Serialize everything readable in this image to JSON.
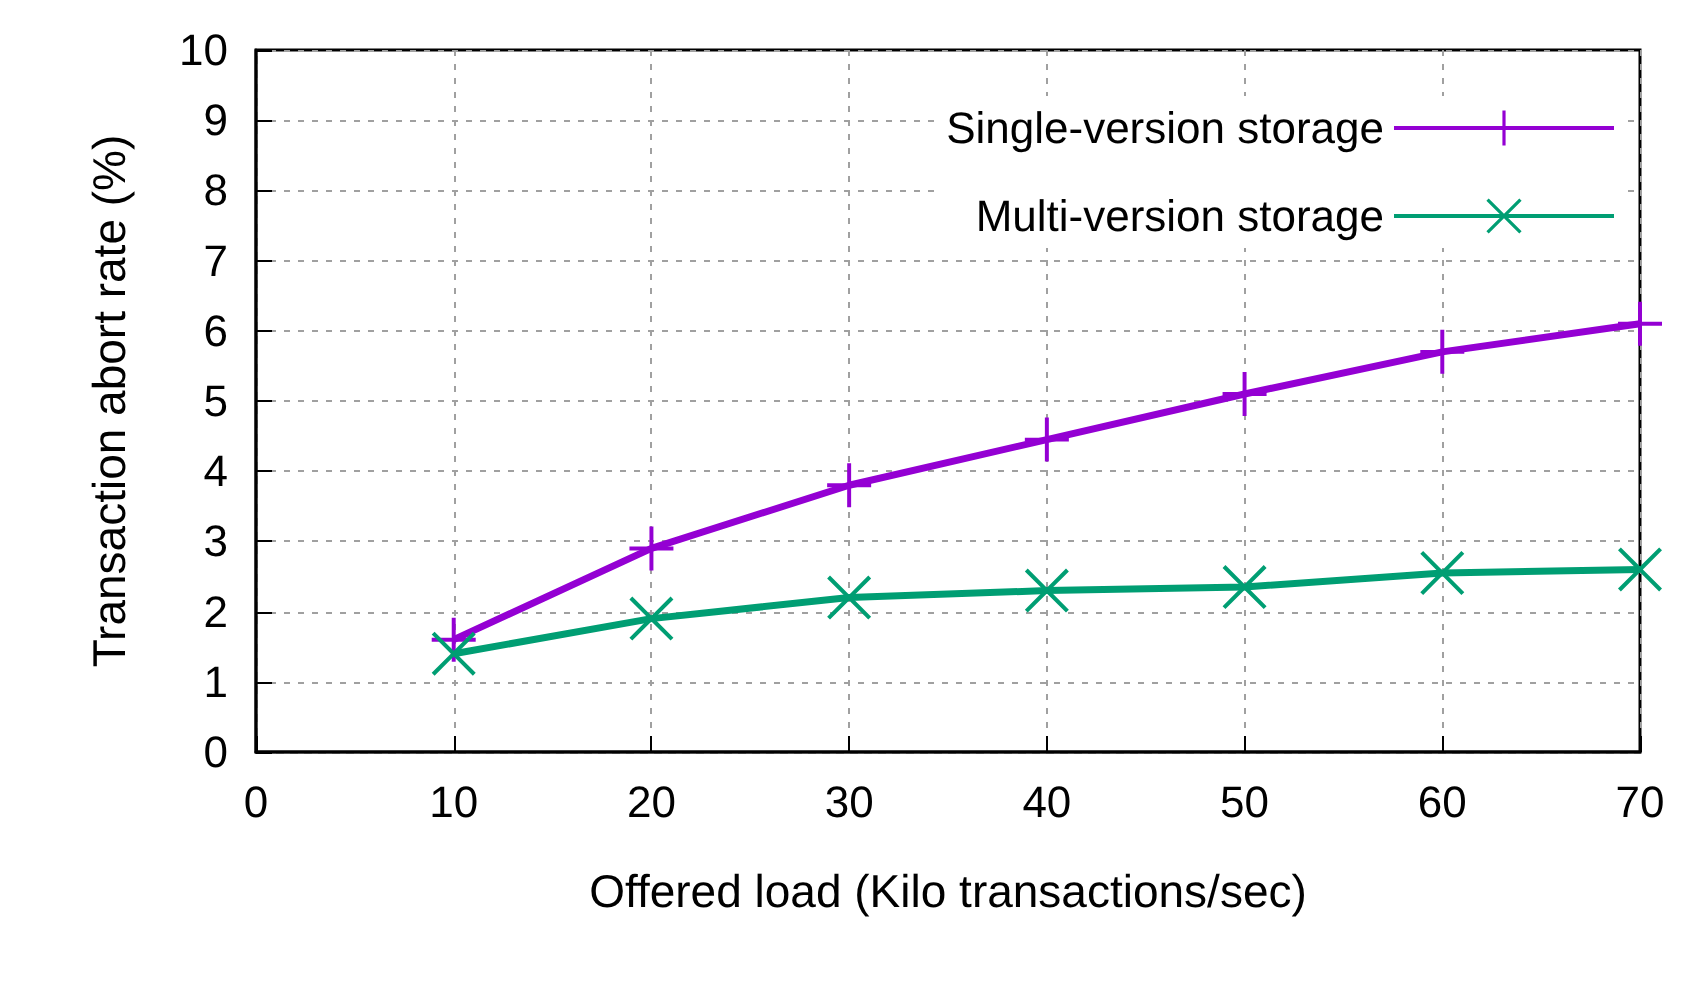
{
  "chart_data": {
    "type": "line",
    "xlabel": "Offered load (Kilo transactions/sec)",
    "ylabel": "Transaction abort rate (%)",
    "x": [
      10,
      20,
      30,
      40,
      50,
      60,
      70
    ],
    "series": [
      {
        "name": "Single-version storage",
        "color": "#9400d3",
        "marker": "cross",
        "values": [
          1.6,
          2.9,
          3.8,
          4.45,
          5.1,
          5.7,
          6.1
        ]
      },
      {
        "name": "Multi-version storage",
        "color": "#009e73",
        "marker": "cross",
        "values": [
          1.4,
          1.9,
          2.2,
          2.3,
          2.35,
          2.55,
          2.6
        ]
      }
    ],
    "xlim": [
      0,
      70
    ],
    "xticks": [
      0,
      10,
      20,
      30,
      40,
      50,
      60,
      70
    ],
    "ylim": [
      0,
      10
    ],
    "yticks": [
      0,
      1,
      2,
      3,
      4,
      5,
      6,
      7,
      8,
      9,
      10
    ],
    "grid": true,
    "legend": "top right"
  }
}
